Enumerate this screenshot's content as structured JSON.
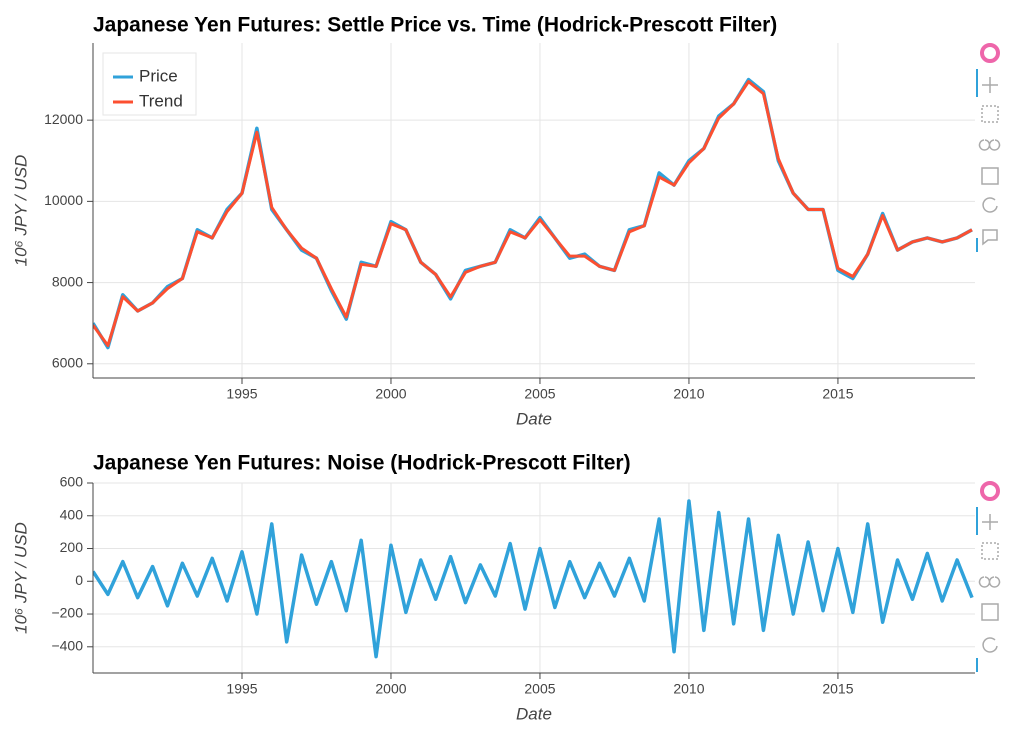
{
  "chart_data": [
    {
      "type": "line",
      "title": "Japanese Yen Futures: Settle Price vs. Time (Hodrick-Prescott Filter)",
      "x_label": "Date",
      "y_label": "10⁶ JPY / USD",
      "x": [
        1990.0,
        1990.5,
        1991.0,
        1991.5,
        1992.0,
        1992.5,
        1993.0,
        1993.5,
        1994.0,
        1994.5,
        1995.0,
        1995.5,
        1996.0,
        1996.5,
        1997.0,
        1997.5,
        1998.0,
        1998.5,
        1999.0,
        1999.5,
        2000.0,
        2000.5,
        2001.0,
        2001.5,
        2002.0,
        2002.5,
        2003.0,
        2003.5,
        2004.0,
        2004.5,
        2005.0,
        2005.5,
        2006.0,
        2006.5,
        2007.0,
        2007.5,
        2008.0,
        2008.5,
        2009.0,
        2009.5,
        2010.0,
        2010.5,
        2011.0,
        2011.5,
        2012.0,
        2012.5,
        2013.0,
        2013.5,
        2014.0,
        2014.5,
        2015.0,
        2015.5,
        2016.0,
        2016.5,
        2017.0,
        2017.5,
        2018.0,
        2018.5,
        2019.0,
        2019.5
      ],
      "series": [
        {
          "name": "Price",
          "color": "#30a2da",
          "values": [
            7000,
            6400,
            7700,
            7300,
            7500,
            7900,
            8100,
            9300,
            9100,
            9800,
            10200,
            11800,
            9800,
            9300,
            8800,
            8600,
            7800,
            7100,
            8500,
            8400,
            9500,
            9300,
            8500,
            8200,
            7600,
            8300,
            8400,
            8500,
            9300,
            9100,
            9600,
            9100,
            8600,
            8700,
            8400,
            8300,
            9300,
            9400,
            10700,
            10400,
            11000,
            11300,
            12100,
            12400,
            13000,
            12700,
            11000,
            10200,
            9800,
            9800,
            8300,
            8100,
            8700,
            9700,
            8800,
            9000,
            9100,
            9000,
            9100,
            9300
          ]
        },
        {
          "name": "Trend",
          "color": "#fc4f30",
          "values": [
            6950,
            6450,
            7650,
            7300,
            7500,
            7850,
            8100,
            9250,
            9100,
            9750,
            10200,
            11700,
            9850,
            9300,
            8850,
            8600,
            7850,
            7150,
            8450,
            8400,
            9450,
            9300,
            8500,
            8200,
            7650,
            8250,
            8400,
            8500,
            9250,
            9100,
            9550,
            9100,
            8650,
            8650,
            8400,
            8300,
            9250,
            9400,
            10600,
            10400,
            10950,
            11300,
            12050,
            12400,
            12950,
            12650,
            11050,
            10200,
            9800,
            9800,
            8350,
            8150,
            8700,
            9650,
            8800,
            9000,
            9100,
            9000,
            9100,
            9300
          ]
        }
      ],
      "xlim": [
        1990.0,
        2019.6
      ],
      "xticks": [
        1995,
        2000,
        2005,
        2010,
        2015
      ],
      "ylim": [
        5650,
        13900
      ],
      "yticks": [
        6000,
        8000,
        10000,
        12000
      ],
      "grid": true,
      "legend": "top_left"
    },
    {
      "type": "line",
      "title": "Japanese Yen Futures: Noise (Hodrick-Prescott Filter)",
      "x_label": "Date",
      "y_label": "10⁶ JPY / USD",
      "x": [
        1990.0,
        1990.5,
        1991.0,
        1991.5,
        1992.0,
        1992.5,
        1993.0,
        1993.5,
        1994.0,
        1994.5,
        1995.0,
        1995.5,
        1996.0,
        1996.5,
        1997.0,
        1997.5,
        1998.0,
        1998.5,
        1999.0,
        1999.5,
        2000.0,
        2000.5,
        2001.0,
        2001.5,
        2002.0,
        2002.5,
        2003.0,
        2003.5,
        2004.0,
        2004.5,
        2005.0,
        2005.5,
        2006.0,
        2006.5,
        2007.0,
        2007.5,
        2008.0,
        2008.5,
        2009.0,
        2009.5,
        2010.0,
        2010.5,
        2011.0,
        2011.5,
        2012.0,
        2012.5,
        2013.0,
        2013.5,
        2014.0,
        2014.5,
        2015.0,
        2015.5,
        2016.0,
        2016.5,
        2017.0,
        2017.5,
        2018.0,
        2018.5,
        2019.0,
        2019.5
      ],
      "series": [
        {
          "name": "Noise",
          "color": "#30a2da",
          "values": [
            60,
            -80,
            120,
            -100,
            90,
            -150,
            110,
            -90,
            140,
            -120,
            180,
            -200,
            350,
            -370,
            160,
            -140,
            120,
            -180,
            250,
            -460,
            220,
            -190,
            130,
            -110,
            150,
            -130,
            100,
            -90,
            230,
            -170,
            200,
            -160,
            120,
            -100,
            110,
            -90,
            140,
            -120,
            380,
            -430,
            490,
            -300,
            420,
            -260,
            380,
            -300,
            280,
            -200,
            240,
            -180,
            200,
            -190,
            350,
            -250,
            130,
            -110,
            170,
            -120,
            130,
            -100
          ]
        }
      ],
      "xlim": [
        1990.0,
        2019.6
      ],
      "xticks": [
        1995,
        2000,
        2005,
        2010,
        2015
      ],
      "ylim": [
        -560,
        600
      ],
      "yticks": [
        {
          "value": -400,
          "label": "−400"
        },
        {
          "value": -200,
          "label": "−200"
        },
        0,
        200,
        400,
        600
      ],
      "grid": true
    }
  ]
}
